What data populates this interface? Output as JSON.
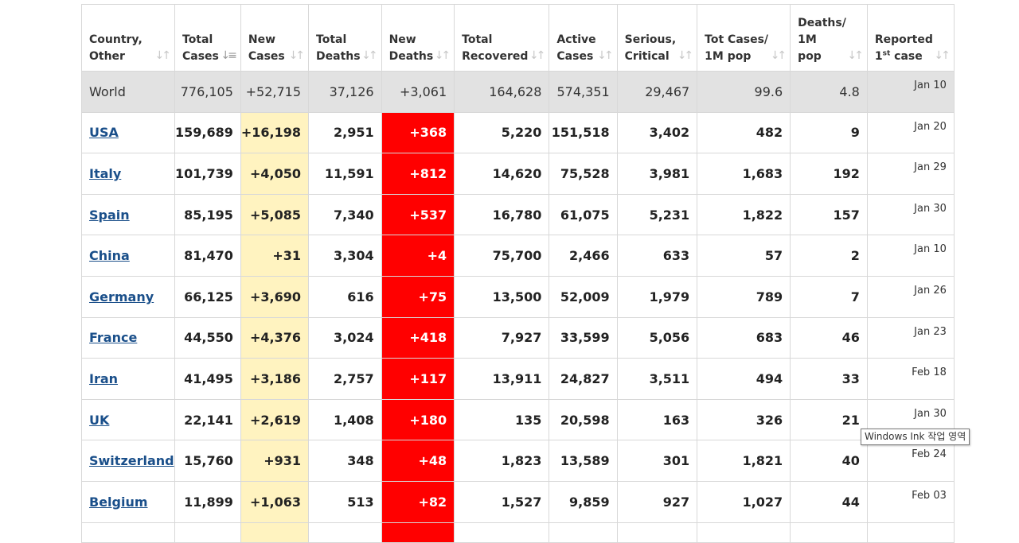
{
  "table": {
    "headers": [
      {
        "l1": "Country,",
        "l2": "Other",
        "l3": "",
        "sort": "sort-arrows-icon"
      },
      {
        "l1": "Total",
        "l2": "Cases",
        "l3": "",
        "sort": "sort-desc-icon"
      },
      {
        "l1": "New",
        "l2": "Cases",
        "l3": "",
        "sort": "sort-arrows-icon"
      },
      {
        "l1": "Total",
        "l2": "Deaths",
        "l3": "",
        "sort": "sort-arrows-icon"
      },
      {
        "l1": "New",
        "l2": "Deaths",
        "l3": "",
        "sort": "sort-arrows-icon"
      },
      {
        "l1": "Total",
        "l2": "Recovered",
        "l3": "",
        "sort": "sort-arrows-icon"
      },
      {
        "l1": "Active",
        "l2": "Cases",
        "l3": "",
        "sort": "sort-arrows-icon"
      },
      {
        "l1": "Serious,",
        "l2": "Critical",
        "l3": "",
        "sort": "sort-arrows-icon"
      },
      {
        "l1": "Tot Cases/",
        "l2": "1M pop",
        "l3": "",
        "sort": "sort-arrows-icon"
      },
      {
        "l1": "Deaths/",
        "l2": "1M",
        "l3": "pop",
        "sort": "sort-arrows-icon"
      },
      {
        "l1": "Reported",
        "l2": "1",
        "sup": "st",
        "l2b": " case",
        "l3": "",
        "sort": "sort-arrows-icon"
      }
    ],
    "world": {
      "country": "World",
      "total_cases": "776,105",
      "new_cases": "+52,715",
      "total_deaths": "37,126",
      "new_deaths": "+3,061",
      "total_recovered": "164,628",
      "active_cases": "574,351",
      "serious_critical": "29,467",
      "tot_cases_per_1m": "99.6",
      "deaths_per_1m": "4.8",
      "first_case": "Jan 10"
    },
    "rows": [
      {
        "country": "USA",
        "total_cases": "159,689",
        "new_cases": "+16,198",
        "total_deaths": "2,951",
        "new_deaths": "+368",
        "total_recovered": "5,220",
        "active_cases": "151,518",
        "serious_critical": "3,402",
        "tot_cases_per_1m": "482",
        "deaths_per_1m": "9",
        "first_case": "Jan 20"
      },
      {
        "country": "Italy",
        "total_cases": "101,739",
        "new_cases": "+4,050",
        "total_deaths": "11,591",
        "new_deaths": "+812",
        "total_recovered": "14,620",
        "active_cases": "75,528",
        "serious_critical": "3,981",
        "tot_cases_per_1m": "1,683",
        "deaths_per_1m": "192",
        "first_case": "Jan 29"
      },
      {
        "country": "Spain",
        "total_cases": "85,195",
        "new_cases": "+5,085",
        "total_deaths": "7,340",
        "new_deaths": "+537",
        "total_recovered": "16,780",
        "active_cases": "61,075",
        "serious_critical": "5,231",
        "tot_cases_per_1m": "1,822",
        "deaths_per_1m": "157",
        "first_case": "Jan 30"
      },
      {
        "country": "China",
        "total_cases": "81,470",
        "new_cases": "+31",
        "total_deaths": "3,304",
        "new_deaths": "+4",
        "total_recovered": "75,700",
        "active_cases": "2,466",
        "serious_critical": "633",
        "tot_cases_per_1m": "57",
        "deaths_per_1m": "2",
        "first_case": "Jan 10"
      },
      {
        "country": "Germany",
        "total_cases": "66,125",
        "new_cases": "+3,690",
        "total_deaths": "616",
        "new_deaths": "+75",
        "total_recovered": "13,500",
        "active_cases": "52,009",
        "serious_critical": "1,979",
        "tot_cases_per_1m": "789",
        "deaths_per_1m": "7",
        "first_case": "Jan 26"
      },
      {
        "country": "France",
        "total_cases": "44,550",
        "new_cases": "+4,376",
        "total_deaths": "3,024",
        "new_deaths": "+418",
        "total_recovered": "7,927",
        "active_cases": "33,599",
        "serious_critical": "5,056",
        "tot_cases_per_1m": "683",
        "deaths_per_1m": "46",
        "first_case": "Jan 23"
      },
      {
        "country": "Iran",
        "total_cases": "41,495",
        "new_cases": "+3,186",
        "total_deaths": "2,757",
        "new_deaths": "+117",
        "total_recovered": "13,911",
        "active_cases": "24,827",
        "serious_critical": "3,511",
        "tot_cases_per_1m": "494",
        "deaths_per_1m": "33",
        "first_case": "Feb 18"
      },
      {
        "country": "UK",
        "total_cases": "22,141",
        "new_cases": "+2,619",
        "total_deaths": "1,408",
        "new_deaths": "+180",
        "total_recovered": "135",
        "active_cases": "20,598",
        "serious_critical": "163",
        "tot_cases_per_1m": "326",
        "deaths_per_1m": "21",
        "first_case": "Jan 30"
      },
      {
        "country": "Switzerland",
        "total_cases": "15,760",
        "new_cases": "+931",
        "total_deaths": "348",
        "new_deaths": "+48",
        "total_recovered": "1,823",
        "active_cases": "13,589",
        "serious_critical": "301",
        "tot_cases_per_1m": "1,821",
        "deaths_per_1m": "40",
        "first_case": "Feb 24"
      },
      {
        "country": "Belgium",
        "total_cases": "11,899",
        "new_cases": "+1,063",
        "total_deaths": "513",
        "new_deaths": "+82",
        "total_recovered": "1,527",
        "active_cases": "9,859",
        "serious_critical": "927",
        "tot_cases_per_1m": "1,027",
        "deaths_per_1m": "44",
        "first_case": "Feb 03"
      }
    ]
  },
  "tooltip": {
    "text": "Windows Ink 작업 영역"
  },
  "colors": {
    "new_cases_bg": "#fff3c0",
    "new_deaths_bg": "#ff0000",
    "world_bg": "#e2e2e2",
    "link": "#1a4f8a"
  }
}
